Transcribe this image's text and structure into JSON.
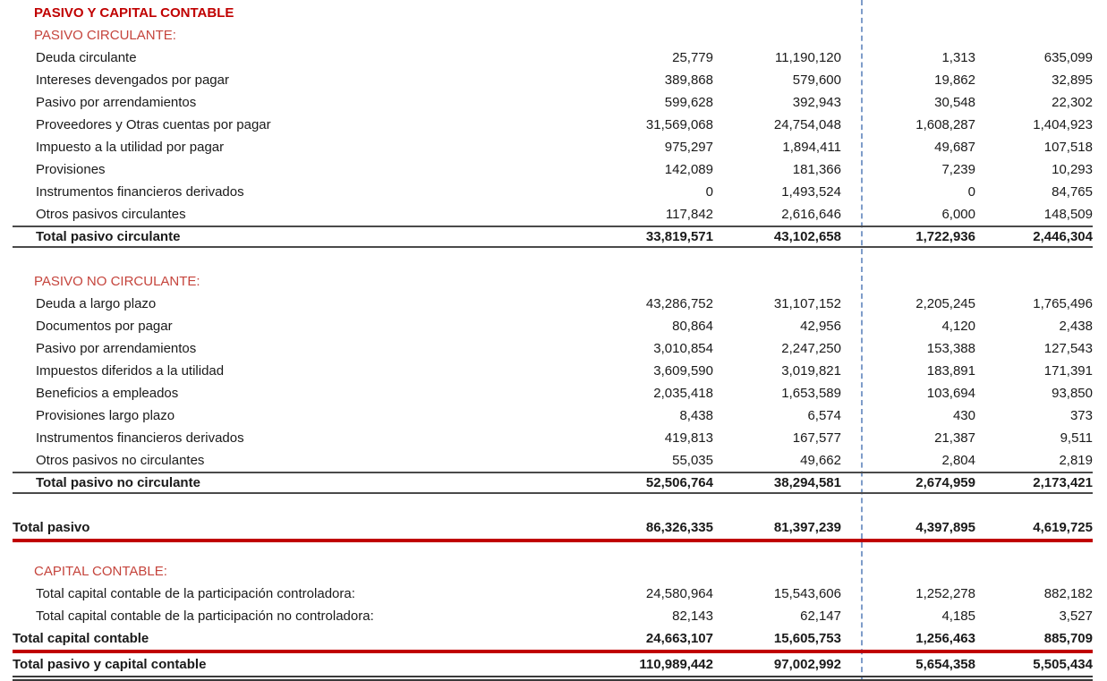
{
  "title": "PASIVO Y CAPITAL CONTABLE",
  "colors": {
    "title_red": "#C00000",
    "section_red": "#C5443C",
    "rule_red": "#C00000",
    "rule_dark": "#4A4A4A",
    "page_break_blue": "#7E9CC9"
  },
  "sections": {
    "pasivo_circulante": {
      "header": "PASIVO CIRCULANTE:",
      "rows": [
        {
          "label": "Deuda circulante",
          "v": [
            "25,779",
            "11,190,120",
            "1,313",
            "635,099"
          ]
        },
        {
          "label": "Intereses devengados por pagar",
          "v": [
            "389,868",
            "579,600",
            "19,862",
            "32,895"
          ]
        },
        {
          "label": "Pasivo por arrendamientos",
          "v": [
            "599,628",
            "392,943",
            "30,548",
            "22,302"
          ]
        },
        {
          "label": "Proveedores y Otras cuentas por pagar",
          "v": [
            "31,569,068",
            "24,754,048",
            "1,608,287",
            "1,404,923"
          ]
        },
        {
          "label": "Impuesto a la utilidad por pagar",
          "v": [
            "975,297",
            "1,894,411",
            "49,687",
            "107,518"
          ]
        },
        {
          "label": "Provisiones",
          "v": [
            "142,089",
            "181,366",
            "7,239",
            "10,293"
          ]
        },
        {
          "label": "Instrumentos financieros derivados",
          "v": [
            "0",
            "1,493,524",
            "0",
            "84,765"
          ]
        },
        {
          "label": "Otros pasivos circulantes",
          "v": [
            "117,842",
            "2,616,646",
            "6,000",
            "148,509"
          ]
        }
      ],
      "total": {
        "label": "Total pasivo circulante",
        "v": [
          "33,819,571",
          "43,102,658",
          "1,722,936",
          "2,446,304"
        ]
      }
    },
    "pasivo_no_circulante": {
      "header": "PASIVO NO CIRCULANTE:",
      "rows": [
        {
          "label": "Deuda a largo plazo",
          "v": [
            "43,286,752",
            "31,107,152",
            "2,205,245",
            "1,765,496"
          ]
        },
        {
          "label": "Documentos por pagar",
          "v": [
            "80,864",
            "42,956",
            "4,120",
            "2,438"
          ]
        },
        {
          "label": "Pasivo por arrendamientos",
          "v": [
            "3,010,854",
            "2,247,250",
            "153,388",
            "127,543"
          ]
        },
        {
          "label": "Impuestos diferidos a la utilidad",
          "v": [
            "3,609,590",
            "3,019,821",
            "183,891",
            "171,391"
          ]
        },
        {
          "label": "Beneficios a empleados",
          "v": [
            "2,035,418",
            "1,653,589",
            "103,694",
            "93,850"
          ]
        },
        {
          "label": "Provisiones largo plazo",
          "v": [
            "8,438",
            "6,574",
            "430",
            "373"
          ]
        },
        {
          "label": "Instrumentos financieros derivados",
          "v": [
            "419,813",
            "167,577",
            "21,387",
            "9,511"
          ]
        },
        {
          "label": "Otros pasivos no circulantes",
          "v": [
            "55,035",
            "49,662",
            "2,804",
            "2,819"
          ]
        }
      ],
      "total": {
        "label": "Total pasivo no circulante",
        "v": [
          "52,506,764",
          "38,294,581",
          "2,674,959",
          "2,173,421"
        ]
      }
    },
    "capital_contable": {
      "header": "CAPITAL CONTABLE:",
      "rows": [
        {
          "label": "Total capital contable de la participación controladora:",
          "v": [
            "24,580,964",
            "15,543,606",
            "1,252,278",
            "882,182"
          ]
        },
        {
          "label": "Total capital contable de la participación no controladora:",
          "v": [
            "82,143",
            "62,147",
            "4,185",
            "3,527"
          ]
        }
      ],
      "total": {
        "label": "Total capital contable",
        "v": [
          "24,663,107",
          "15,605,753",
          "1,256,463",
          "885,709"
        ]
      }
    }
  },
  "grand_totals": {
    "total_pasivo": {
      "label": "Total pasivo",
      "v": [
        "86,326,335",
        "81,397,239",
        "4,397,895",
        "4,619,725"
      ]
    },
    "total_pasivo_y_capital": {
      "label": "Total pasivo y capital contable",
      "v": [
        "110,989,442",
        "97,002,992",
        "5,654,358",
        "5,505,434"
      ]
    }
  }
}
